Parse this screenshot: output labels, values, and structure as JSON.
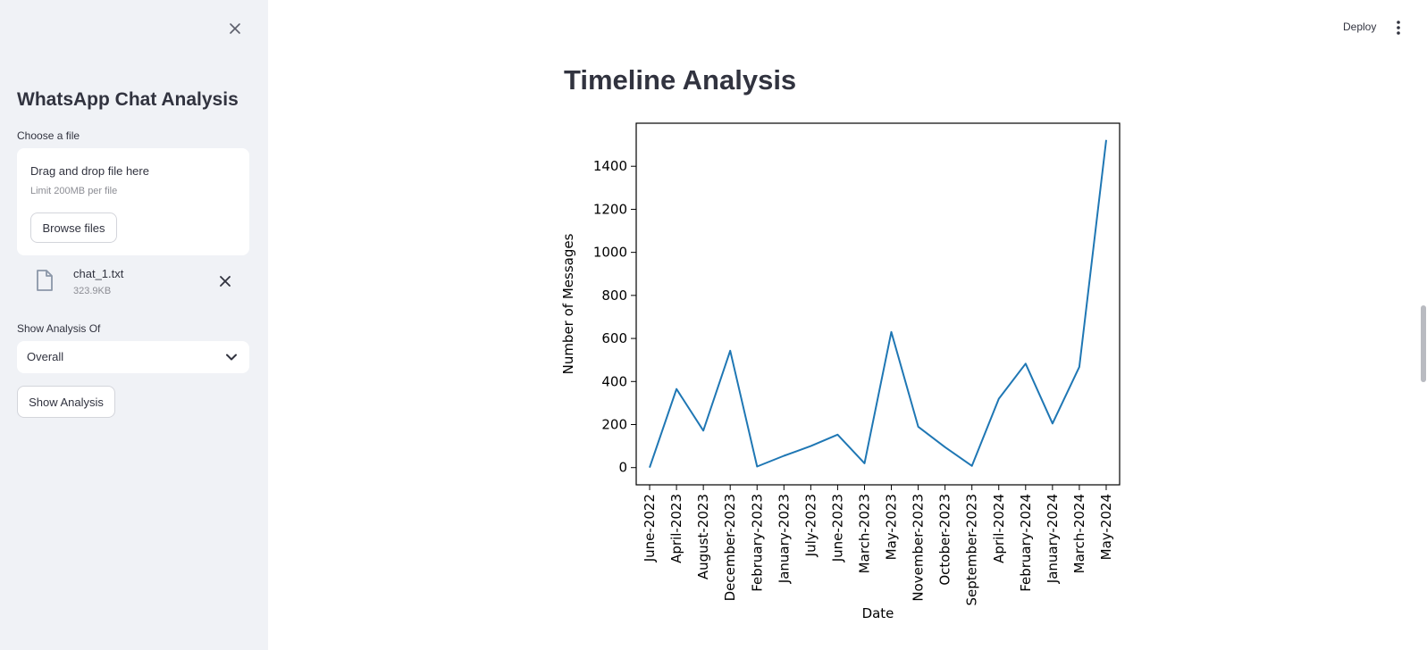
{
  "sidebar": {
    "title": "WhatsApp Chat Analysis",
    "file_label": "Choose a file",
    "dropzone": {
      "title": "Drag and drop file here",
      "limit": "Limit 200MB per file",
      "browse_label": "Browse files"
    },
    "uploaded_file": {
      "name": "chat_1.txt",
      "size": "323.9KB"
    },
    "analysis_label": "Show Analysis Of",
    "analysis_select": {
      "value": "Overall"
    },
    "show_button": "Show Analysis"
  },
  "header": {
    "deploy_label": "Deploy"
  },
  "main": {
    "title": "Timeline Analysis"
  },
  "chart_data": {
    "type": "line",
    "categories": [
      "June-2022",
      "April-2023",
      "August-2023",
      "December-2023",
      "February-2023",
      "January-2023",
      "July-2023",
      "June-2023",
      "March-2023",
      "May-2023",
      "November-2023",
      "October-2023",
      "September-2023",
      "April-2024",
      "February-2024",
      "January-2024",
      "March-2024",
      "May-2024"
    ],
    "values": [
      0,
      365,
      172,
      543,
      5,
      55,
      100,
      153,
      20,
      630,
      190,
      95,
      8,
      320,
      483,
      205,
      468,
      1522
    ],
    "xlabel": "Date",
    "ylabel": "Number of Messages",
    "ylim": [
      -80,
      1600
    ],
    "yticks": [
      0,
      200,
      400,
      600,
      800,
      1000,
      1200,
      1400
    ],
    "line_color": "#1f77b4",
    "grid": false
  }
}
